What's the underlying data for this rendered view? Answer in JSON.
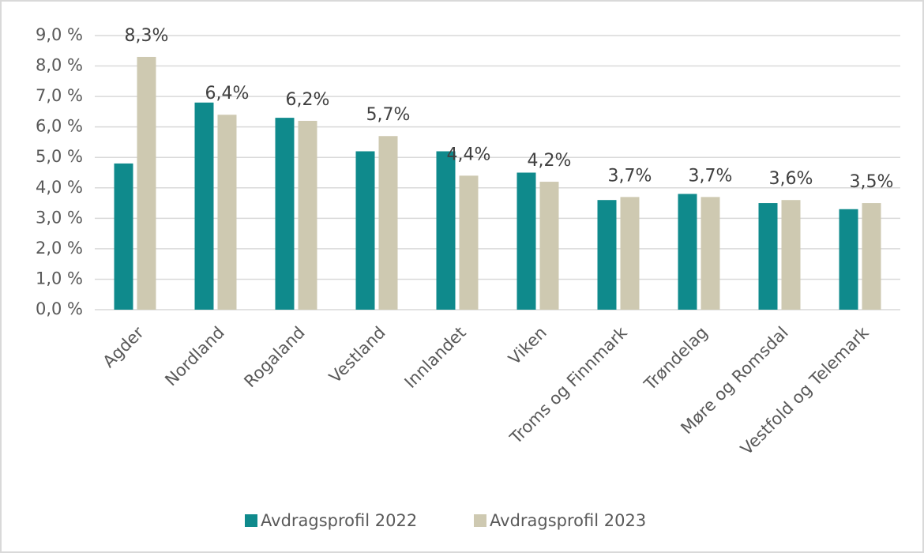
{
  "chart_data": {
    "type": "bar",
    "categories": [
      "Agder",
      "Nordland",
      "Rogaland",
      "Vestland",
      "Innlandet",
      "Viken",
      "Troms og Finnmark",
      "Trøndelag",
      "Møre og Romsdal",
      "Vestfold og Telemark"
    ],
    "series": [
      {
        "name": "Avdragsprofil 2022",
        "color": "#0f8a8c",
        "values": [
          4.8,
          6.8,
          6.3,
          5.2,
          5.2,
          4.5,
          3.6,
          3.8,
          3.5,
          3.3
        ]
      },
      {
        "name": "Avdragsprofil 2023",
        "color": "#cec9b1",
        "values": [
          8.3,
          6.4,
          6.2,
          5.7,
          4.4,
          4.2,
          3.7,
          3.7,
          3.6,
          3.5
        ],
        "value_labels": [
          "8,3%",
          "6,4%",
          "6,2%",
          "5,7%",
          "4,4%",
          "4,2%",
          "3,7%",
          "3,7%",
          "3,6%",
          "3,5%"
        ]
      }
    ],
    "ylim": [
      0,
      9
    ],
    "yticks": [
      {
        "value": 0,
        "label": "0,0 %"
      },
      {
        "value": 1,
        "label": "1,0 %"
      },
      {
        "value": 2,
        "label": "2,0 %"
      },
      {
        "value": 3,
        "label": "3,0 %"
      },
      {
        "value": 4,
        "label": "4,0 %"
      },
      {
        "value": 5,
        "label": "5,0 %"
      },
      {
        "value": 6,
        "label": "6,0 %"
      },
      {
        "value": 7,
        "label": "7,0 %"
      },
      {
        "value": 8,
        "label": "8,0 %"
      },
      {
        "value": 9,
        "label": "9,0 %"
      }
    ],
    "grid": true,
    "legend": "bottom"
  }
}
